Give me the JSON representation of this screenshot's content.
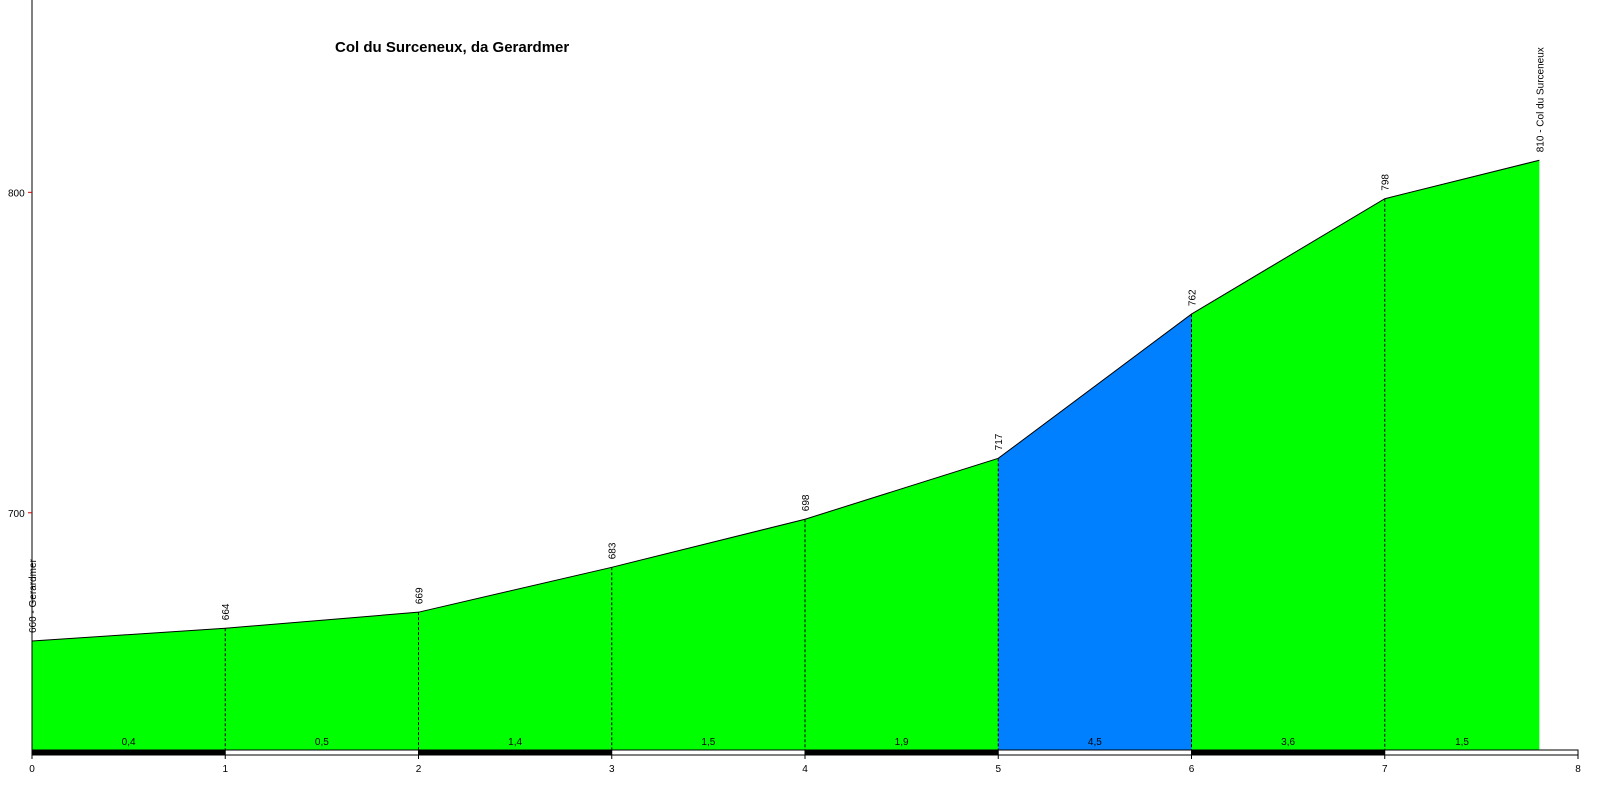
{
  "chart_data": {
    "type": "profile",
    "title": "Col du Surceneux, da Gerardmer",
    "x": [
      0,
      1,
      2,
      3,
      4,
      5,
      6,
      7,
      7.8
    ],
    "values": [
      660,
      664,
      669,
      683,
      698,
      717,
      762,
      798,
      810
    ],
    "value_labels": [
      "660 - Gerardmer",
      "664",
      "669",
      "683",
      "698",
      "717",
      "762",
      "798",
      "810 - Col du Surceneux"
    ],
    "gradients": [
      0.4,
      0.5,
      1.4,
      1.5,
      1.9,
      4.5,
      3.6,
      1.5
    ],
    "gradient_labels": [
      "0,4",
      "0,5",
      "1,4",
      "1,5",
      "1,9",
      "4,5",
      "3,6",
      "1,5"
    ],
    "segment_colors": [
      "#00ff00",
      "#00ff00",
      "#00ff00",
      "#00ff00",
      "#00ff00",
      "#0080ff",
      "#00ff00",
      "#00ff00"
    ],
    "xlim": [
      0,
      8
    ],
    "xticks": [
      0,
      1,
      2,
      3,
      4,
      5,
      6,
      7,
      8
    ],
    "ylim": [
      626,
      860
    ],
    "yticks": [
      700,
      800
    ]
  }
}
